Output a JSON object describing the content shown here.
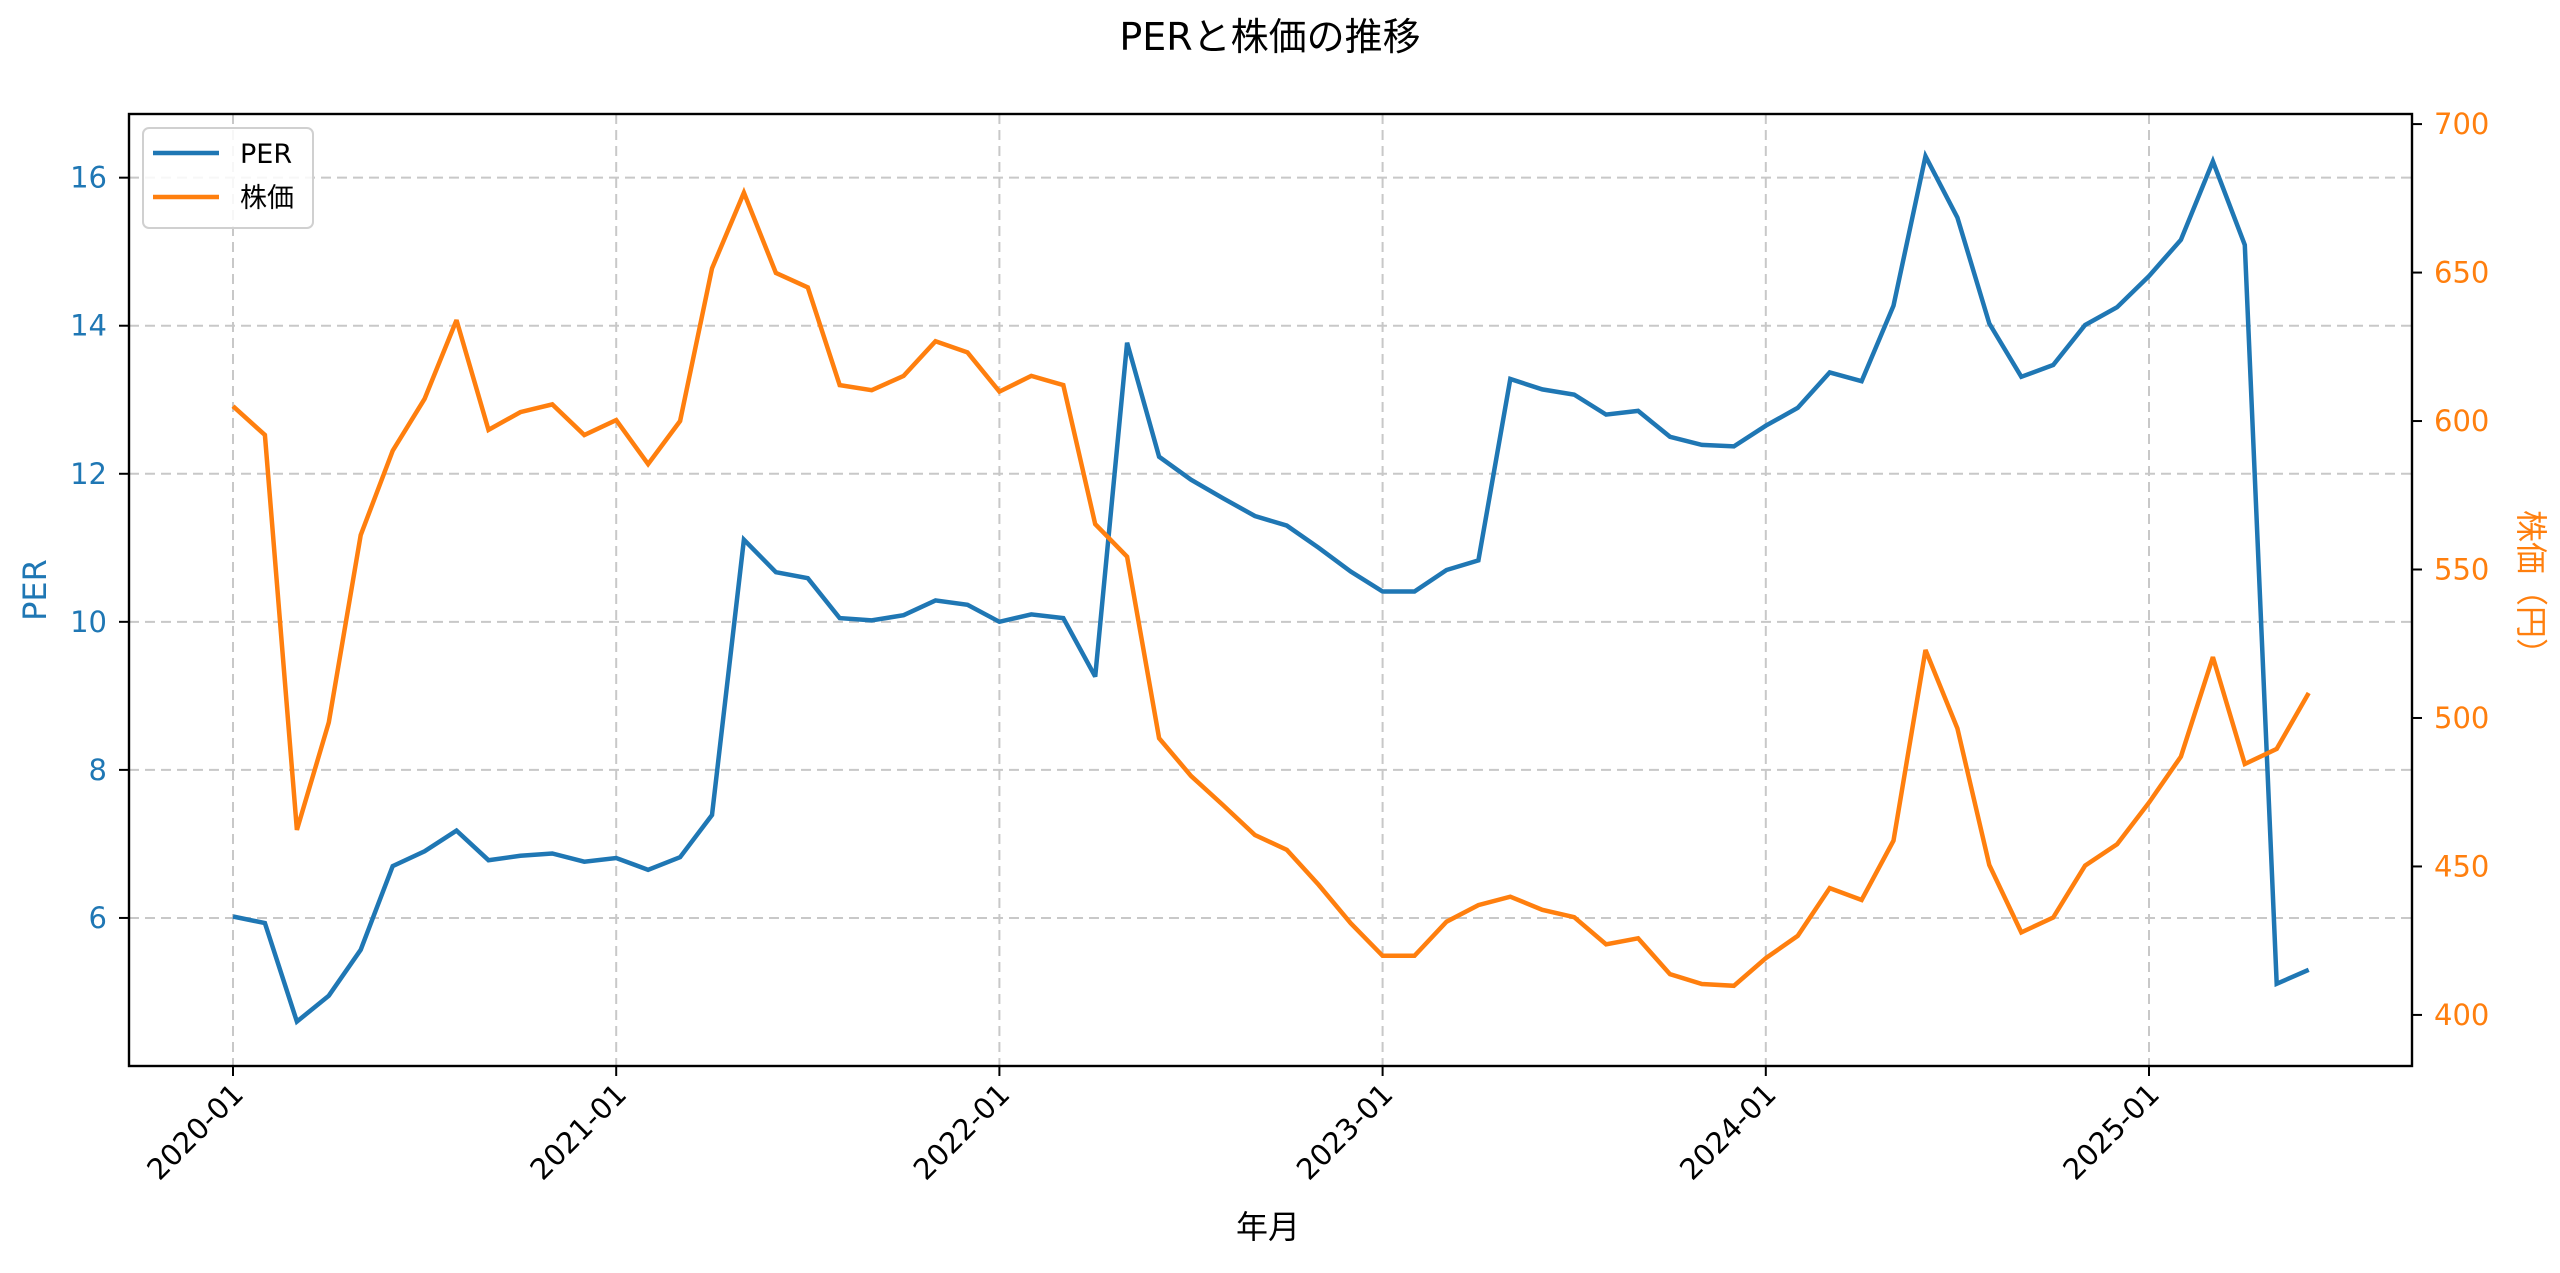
{
  "chart_data": {
    "type": "line",
    "title": "PERと株価の推移",
    "xlabel": "年月",
    "ylabel": "PER",
    "ylabel_right": "株価（円）",
    "grid": true,
    "grid_style": "dashed",
    "legend_position": "upper left",
    "x_tick_labels": [
      "2020-01",
      "2021-01",
      "2022-01",
      "2023-01",
      "2024-01",
      "2025-01"
    ],
    "y_ticks_left": [
      6,
      8,
      10,
      12,
      14,
      16
    ],
    "y_ticks_right": [
      400,
      450,
      500,
      550,
      600,
      650,
      700
    ],
    "ylim_left": [
      4.0,
      16.86
    ],
    "ylim_right": [
      382.8,
      703.4
    ],
    "x": [
      "2020-01",
      "2020-02",
      "2020-03",
      "2020-04",
      "2020-05",
      "2020-06",
      "2020-07",
      "2020-08",
      "2020-09",
      "2020-10",
      "2020-11",
      "2020-12",
      "2021-01",
      "2021-02",
      "2021-03",
      "2021-04",
      "2021-05",
      "2021-06",
      "2021-07",
      "2021-08",
      "2021-09",
      "2021-10",
      "2021-11",
      "2021-12",
      "2022-01",
      "2022-02",
      "2022-03",
      "2022-04",
      "2022-05",
      "2022-06",
      "2022-07",
      "2022-08",
      "2022-09",
      "2022-10",
      "2022-11",
      "2022-12",
      "2023-01",
      "2023-02",
      "2023-03",
      "2023-04",
      "2023-05",
      "2023-06",
      "2023-07",
      "2023-08",
      "2023-09",
      "2023-10",
      "2023-11",
      "2023-12",
      "2024-01",
      "2024-02",
      "2024-03",
      "2024-04",
      "2024-05",
      "2024-06",
      "2024-07",
      "2024-08",
      "2024-09",
      "2024-10",
      "2024-11",
      "2024-12",
      "2025-01",
      "2025-02",
      "2025-03",
      "2025-04",
      "2025-05",
      "2025-06"
    ],
    "series": [
      {
        "name": "PER",
        "axis": "left",
        "color": "#1f77b4",
        "values": [
          6.02,
          5.93,
          4.6,
          4.95,
          5.57,
          6.7,
          6.9,
          7.18,
          6.78,
          6.84,
          6.87,
          6.76,
          6.81,
          6.65,
          6.82,
          7.39,
          11.11,
          10.67,
          10.59,
          10.05,
          10.02,
          10.09,
          10.29,
          10.23,
          10.0,
          10.1,
          10.05,
          9.26,
          13.77,
          12.23,
          11.92,
          11.67,
          11.43,
          11.3,
          11.0,
          10.68,
          10.41,
          10.41,
          10.7,
          10.83,
          13.28,
          13.14,
          13.07,
          12.8,
          12.85,
          12.5,
          12.39,
          12.37,
          12.65,
          12.89,
          13.37,
          13.25,
          14.27,
          16.29,
          15.46,
          14.03,
          13.31,
          13.47,
          14.01,
          14.25,
          14.67,
          15.16,
          16.22,
          15.09,
          5.11,
          5.3
        ]
      },
      {
        "name": "株価",
        "axis": "right",
        "color": "#ff7f0e",
        "values": [
          605.0,
          595.3,
          462.3,
          498.5,
          561.6,
          590.0,
          607.5,
          634.0,
          597.0,
          603.0,
          605.6,
          595.3,
          600.3,
          585.5,
          600.0,
          651.4,
          676.9,
          649.9,
          645.0,
          612.1,
          610.4,
          615.2,
          626.9,
          623.1,
          609.9,
          615.2,
          612.1,
          565.3,
          554.3,
          493.2,
          480.5,
          470.7,
          460.6,
          455.6,
          443.8,
          430.9,
          419.9,
          419.9,
          431.4,
          437.0,
          439.8,
          435.4,
          432.9,
          423.8,
          425.8,
          413.7,
          410.4,
          409.8,
          419.1,
          426.6,
          442.7,
          438.7,
          458.7,
          522.9,
          496.5,
          450.5,
          427.8,
          432.8,
          450.3,
          457.5,
          471.5,
          487.0,
          520.5,
          484.5,
          489.6,
          508.4
        ]
      }
    ],
    "colors": {
      "per_axis": "#1f77b4",
      "price_axis": "#ff7f0e",
      "grid": "#c8c8c8",
      "spine": "#000000"
    }
  }
}
